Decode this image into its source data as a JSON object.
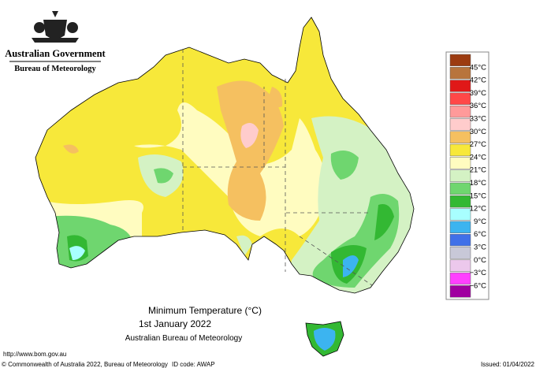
{
  "header": {
    "government": "Australian Government",
    "bureau": "Bureau of Meteorology"
  },
  "map": {
    "title": "Minimum Temperature (°C)",
    "date": "1st January 2022",
    "agency": "Australian Bureau of Meteorology"
  },
  "legend": {
    "labels": [
      "45°C",
      "42°C",
      "39°C",
      "36°C",
      "33°C",
      "30°C",
      "27°C",
      "24°C",
      "21°C",
      "18°C",
      "15°C",
      "12°C",
      "9°C",
      "6°C",
      "3°C",
      "0°C",
      "−3°C",
      "−6°C"
    ],
    "colors": [
      "#9c3b10",
      "#b8743c",
      "#e01818",
      "#ff4848",
      "#ff9a9a",
      "#ffcccc",
      "#f5c060",
      "#f7e83a",
      "#fffcc0",
      "#d4f2c4",
      "#6fd66f",
      "#33b833",
      "#a8ffff",
      "#3cb4f0",
      "#4070e8",
      "#c8c8d8",
      "#ecc8ec",
      "#ff40ff",
      "#a000a0"
    ]
  },
  "footer": {
    "url": "http://www.bom.gov.au",
    "copyright": "© Commonwealth of Australia 2022, Bureau of Meteorology",
    "id_code": "ID code: AWAP",
    "issued": "Issued: 01/04/2022"
  }
}
